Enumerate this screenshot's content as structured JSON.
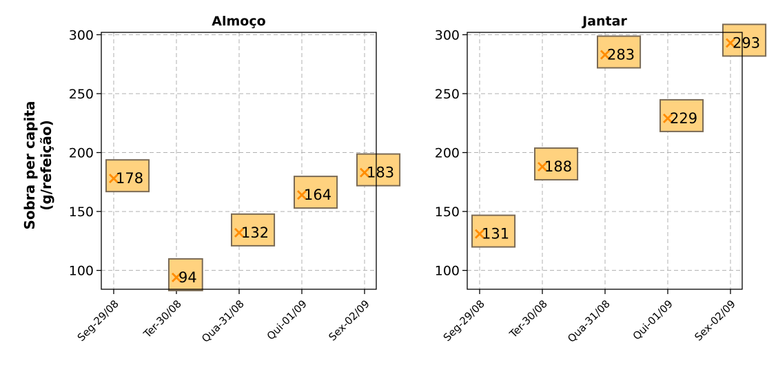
{
  "chart_data": {
    "ylabel_lines": [
      "Sobra per capita",
      "(g/refeição)"
    ],
    "panels": [
      {
        "type": "scatter",
        "title": "Almoço",
        "categories": [
          "Seg-29/08",
          "Ter-30/08",
          "Qua-31/08",
          "Qui-01/09",
          "Sex-02/09"
        ],
        "values": [
          178,
          94,
          132,
          164,
          183
        ],
        "labels": [
          "178",
          "94",
          "132",
          "164",
          "183"
        ],
        "yticks": [
          "100",
          "150",
          "200",
          "250",
          "300"
        ],
        "ylim": [
          84,
          302
        ],
        "grid": true,
        "marker": "x",
        "marker_color": "#ff8c00",
        "label_box_color": "#ffd27f"
      },
      {
        "type": "scatter",
        "title": "Jantar",
        "categories": [
          "Seg-29/08",
          "Ter-30/08",
          "Qua-31/08",
          "Qui-01/09",
          "Sex-02/09"
        ],
        "values": [
          131,
          188,
          283,
          229,
          293
        ],
        "labels": [
          "131",
          "188",
          "283",
          "229",
          "293"
        ],
        "yticks": [
          "100",
          "150",
          "200",
          "250",
          "300"
        ],
        "ylim": [
          84,
          302
        ],
        "grid": true,
        "marker": "x",
        "marker_color": "#ff8c00",
        "label_box_color": "#ffd27f"
      }
    ]
  }
}
